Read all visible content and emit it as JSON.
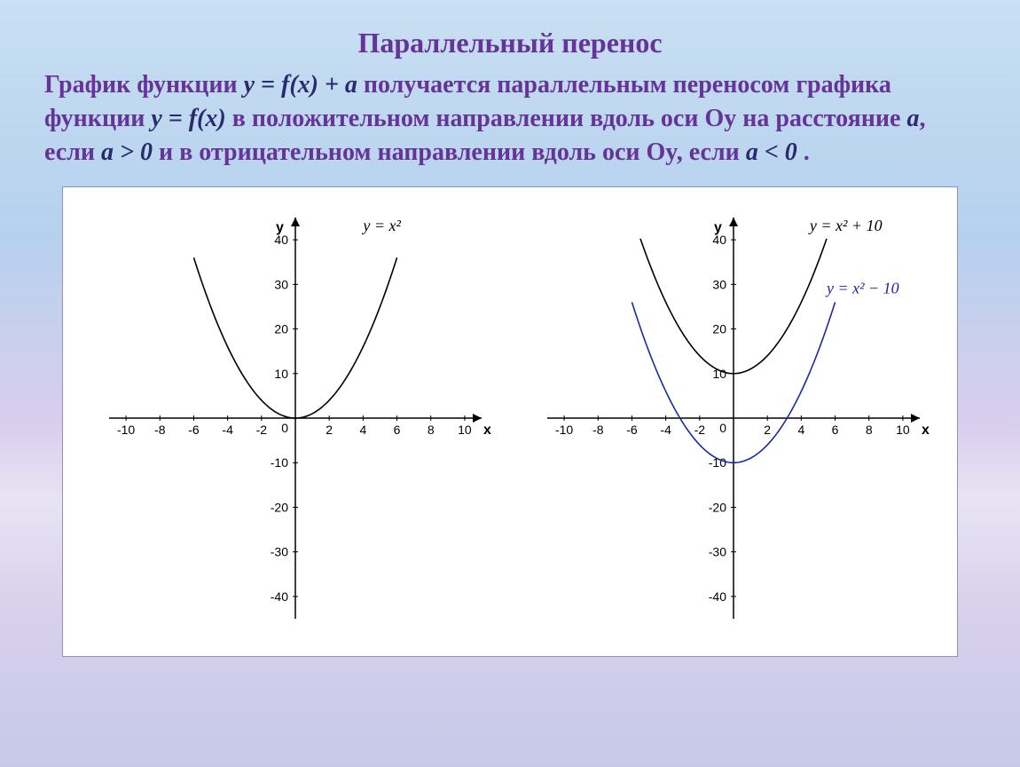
{
  "title": "Параллельный перенос",
  "body_parts": {
    "p1": "График функции ",
    "f1": "y = f(x) + a",
    "p2": "  получается параллельным переносом графика функции ",
    "f2": "y = f(x)",
    "p3": " в положительном направлении вдоль оси Оy на расстояние ",
    "f3": "a",
    "p4": ", если ",
    "f4": "a > 0",
    "p5": "  и в отрицательном направлении вдоль оси Оy, если ",
    "f5": "a < 0",
    "p6": " ."
  },
  "chart_common": {
    "x_axis_label": "x",
    "y_axis_label": "y",
    "x_ticks": [
      -10,
      -8,
      -6,
      -4,
      -2,
      0,
      2,
      4,
      6,
      8,
      10
    ],
    "y_ticks": [
      -40,
      -30,
      -20,
      -10,
      10,
      20,
      30,
      40
    ],
    "zero_label": "0",
    "xlim": [
      -11,
      11
    ],
    "ylim": [
      -45,
      45
    ],
    "axis_color": "#000000",
    "tick_color": "#000000",
    "tick_fontsize": 14,
    "label_fontsize": 16,
    "background_color": "#ffffff",
    "line_width": 1.6
  },
  "chart_left": {
    "curves": [
      {
        "label": "y = x²",
        "label_color": "#000000",
        "label_pos": {
          "x": 4,
          "y": 42
        },
        "color": "#000000",
        "shift": 0,
        "xdomain": [
          -6,
          6
        ]
      }
    ]
  },
  "chart_right": {
    "curves": [
      {
        "label": "y = x² + 10",
        "label_color": "#000000",
        "label_pos": {
          "x": 4.5,
          "y": 42
        },
        "color": "#000000",
        "shift": 10,
        "xdomain": [
          -5.5,
          5.5
        ]
      },
      {
        "label": "y = x² − 10",
        "label_color": "#1a2aa0",
        "label_pos": {
          "x": 5.5,
          "y": 28
        },
        "color": "#1a2aa0",
        "shift": -10,
        "xdomain": [
          -6,
          6
        ]
      }
    ]
  }
}
